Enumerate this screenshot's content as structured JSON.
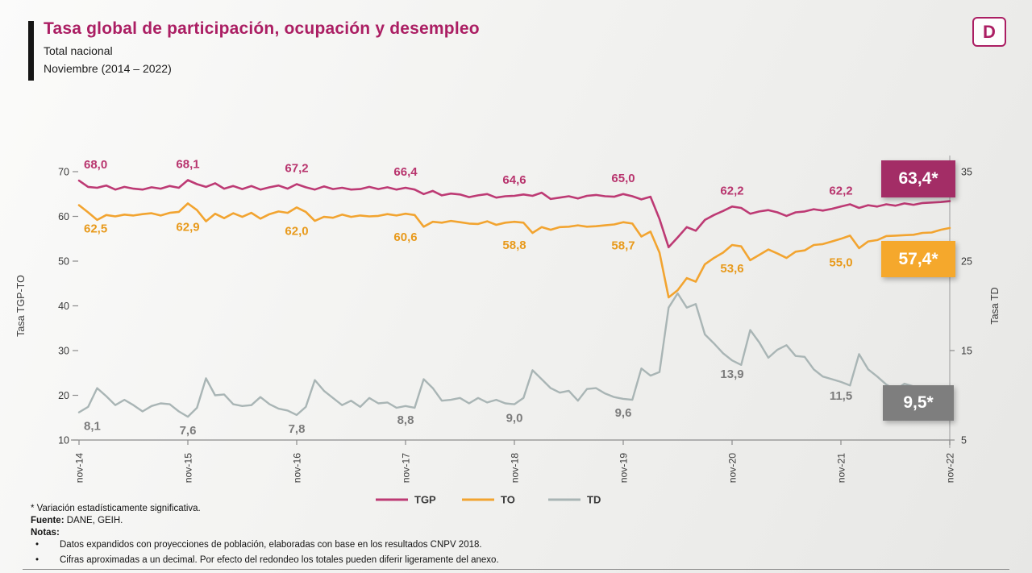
{
  "header": {
    "title": "Tasa global de participación, ocupación y desempleo",
    "subtitle1": "Total nacional",
    "subtitle2": "Noviembre (2014 – 2022)",
    "logo_letter": "D"
  },
  "theme": {
    "accent": "#ab1e63",
    "background_top": "#fbfbfa",
    "background_bottom": "#e7e7e5"
  },
  "chart_data": {
    "type": "line",
    "frequency": "monthly",
    "x_start": "nov-14",
    "x_end": "nov-22",
    "x_tick_labels": [
      "nov-14",
      "nov-15",
      "nov-16",
      "nov-17",
      "nov-18",
      "nov-19",
      "nov-20",
      "nov-21",
      "nov-22"
    ],
    "x_tick_positions": [
      0,
      12,
      24,
      36,
      48,
      60,
      72,
      84,
      96
    ],
    "y_left": {
      "label": "Tasa TGP-TO",
      "min": 10,
      "max": 70,
      "ticks": [
        10,
        20,
        30,
        40,
        50,
        60,
        70
      ]
    },
    "y_right": {
      "label": "Tasa TD",
      "min": 5,
      "max": 35,
      "ticks": [
        5,
        15,
        25,
        35
      ]
    },
    "grid": false,
    "legend_position": "bottom-center",
    "series": [
      {
        "name": "TD",
        "axis": "right",
        "color": "#a9b5b5",
        "label_color": "#7c7c7c",
        "width": 2.4,
        "values": [
          8.1,
          8.7,
          10.8,
          9.9,
          8.9,
          9.5,
          8.9,
          8.2,
          8.8,
          9.1,
          9.0,
          8.2,
          7.6,
          8.6,
          11.9,
          10.0,
          10.1,
          9.0,
          8.8,
          8.9,
          9.8,
          9.0,
          8.5,
          8.3,
          7.8,
          8.7,
          11.7,
          10.5,
          9.7,
          8.9,
          9.4,
          8.7,
          9.7,
          9.1,
          9.2,
          8.6,
          8.8,
          8.6,
          11.8,
          10.8,
          9.4,
          9.5,
          9.7,
          9.1,
          9.7,
          9.2,
          9.5,
          9.1,
          9.0,
          9.7,
          12.8,
          11.8,
          10.8,
          10.3,
          10.5,
          9.4,
          10.7,
          10.8,
          10.2,
          9.8,
          9.6,
          9.5,
          13.0,
          12.2,
          12.6,
          19.8,
          21.4,
          19.8,
          20.2,
          16.8,
          15.8,
          14.7,
          13.9,
          13.4,
          17.3,
          15.9,
          14.2,
          15.1,
          15.6,
          14.4,
          14.3,
          12.9,
          12.1,
          11.8,
          11.5,
          11.1,
          14.6,
          12.9,
          12.1,
          11.2,
          10.6,
          11.3,
          11.0,
          10.6,
          10.7,
          9.7,
          9.5
        ]
      },
      {
        "name": "TO",
        "axis": "left",
        "color": "#f2a430",
        "label_color": "#e89a1c",
        "width": 2.6,
        "values": [
          62.5,
          60.9,
          59.2,
          60.3,
          60.0,
          60.4,
          60.2,
          60.5,
          60.7,
          60.2,
          60.8,
          61.0,
          62.9,
          61.4,
          58.9,
          60.6,
          59.6,
          60.7,
          59.9,
          60.8,
          59.5,
          60.5,
          61.1,
          60.8,
          62.0,
          61.0,
          59.0,
          59.9,
          59.7,
          60.4,
          59.9,
          60.2,
          60.0,
          60.1,
          60.5,
          60.2,
          60.6,
          60.3,
          57.7,
          58.8,
          58.6,
          59.0,
          58.7,
          58.4,
          58.3,
          58.9,
          58.1,
          58.6,
          58.8,
          58.6,
          56.3,
          57.6,
          57.0,
          57.6,
          57.7,
          58.0,
          57.7,
          57.8,
          58.0,
          58.2,
          58.7,
          58.4,
          55.5,
          56.6,
          51.9,
          41.9,
          43.5,
          46.2,
          45.4,
          49.3,
          50.7,
          51.9,
          53.6,
          53.3,
          50.2,
          51.4,
          52.6,
          51.7,
          50.7,
          52.1,
          52.4,
          53.6,
          53.8,
          54.4,
          55.0,
          55.7,
          52.9,
          54.4,
          54.7,
          55.6,
          55.7,
          55.8,
          55.9,
          56.3,
          56.4,
          57.0,
          57.4
        ]
      },
      {
        "name": "TGP",
        "axis": "left",
        "color": "#bd3a74",
        "label_color": "#b8356e",
        "width": 2.6,
        "values": [
          68.0,
          66.6,
          66.4,
          66.9,
          66.0,
          66.6,
          66.2,
          66.0,
          66.5,
          66.2,
          66.8,
          66.4,
          68.1,
          67.2,
          66.6,
          67.4,
          66.2,
          66.8,
          66.1,
          66.8,
          66.0,
          66.5,
          66.9,
          66.2,
          67.2,
          66.5,
          66.0,
          66.7,
          66.1,
          66.4,
          66.0,
          66.1,
          66.6,
          66.1,
          66.5,
          66.0,
          66.4,
          66.0,
          65.0,
          65.7,
          64.7,
          65.1,
          64.9,
          64.3,
          64.7,
          65.0,
          64.2,
          64.5,
          64.6,
          64.9,
          64.6,
          65.3,
          63.9,
          64.2,
          64.5,
          64.0,
          64.6,
          64.8,
          64.5,
          64.4,
          65.0,
          64.5,
          63.8,
          64.4,
          59.4,
          53.1,
          55.3,
          57.6,
          56.8,
          59.2,
          60.3,
          61.2,
          62.2,
          61.9,
          60.6,
          61.1,
          61.4,
          60.9,
          60.1,
          60.9,
          61.1,
          61.6,
          61.3,
          61.7,
          62.2,
          62.7,
          61.9,
          62.5,
          62.2,
          62.7,
          62.4,
          62.9,
          62.6,
          63.0,
          63.1,
          63.2,
          63.4
        ]
      }
    ],
    "november_labels": {
      "TGP": [
        "68,0",
        "68,1",
        "67,2",
        "66,4",
        "64,6",
        "65,0",
        "62,2",
        "62,2"
      ],
      "TO": [
        "62,5",
        "62,9",
        "62,0",
        "60,6",
        "58,8",
        "58,7",
        "53,6",
        "55,0"
      ],
      "TD": [
        "8,1",
        "7,6",
        "7,8",
        "8,8",
        "9,0",
        "9,6",
        "13,9",
        "11,5"
      ]
    },
    "end_boxes": [
      {
        "series": "TGP",
        "text": "63,4*",
        "bg": "#a32d66"
      },
      {
        "series": "TO",
        "text": "57,4*",
        "bg": "#f5a82c"
      },
      {
        "series": "TD",
        "text": "9,5*",
        "bg": "#7e7e7e"
      }
    ],
    "legend": [
      {
        "label": "TGP",
        "color": "#bd3a74"
      },
      {
        "label": "TO",
        "color": "#f2a430"
      },
      {
        "label": "TD",
        "color": "#a9b5b5"
      }
    ]
  },
  "footer": {
    "note_significance": "* Variación estadísticamente significativa.",
    "source_label": "Fuente:",
    "source_text": " DANE, GEIH.",
    "notes_label": "Notas:",
    "bullet_char": "•",
    "notes": [
      "Datos expandidos con proyecciones de población, elaboradas con base en los resultados CNPV 2018.",
      "Cifras aproximadas a un decimal. Por efecto del redondeo los totales pueden diferir ligeramente del anexo."
    ]
  }
}
